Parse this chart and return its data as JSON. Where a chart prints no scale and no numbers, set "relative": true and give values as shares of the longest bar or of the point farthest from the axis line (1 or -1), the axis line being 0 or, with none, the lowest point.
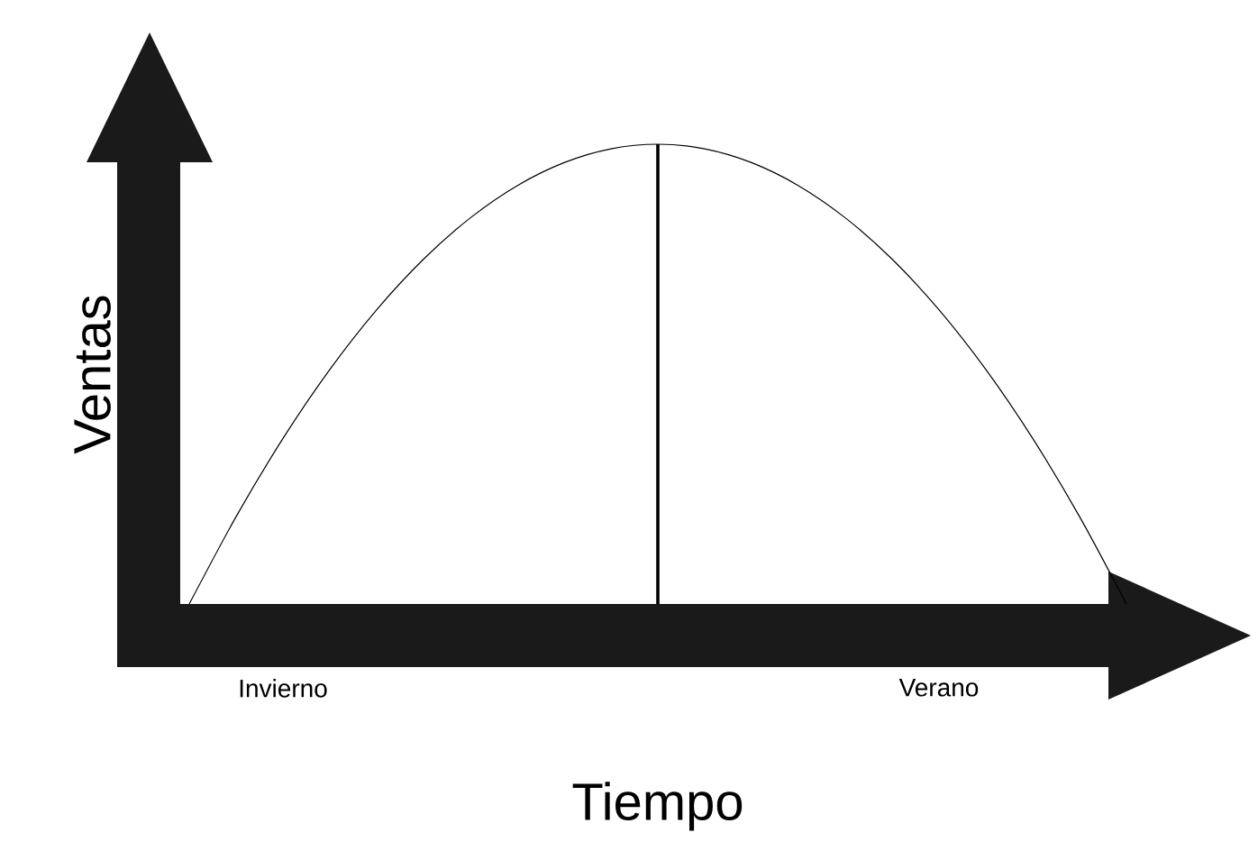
{
  "chart_data": {
    "type": "line",
    "relative": true,
    "xlabel": "Tiempo",
    "ylabel": "Ventas",
    "color": "#000000",
    "categories": [
      null,
      null,
      "Invierno",
      null,
      null,
      null,
      null,
      null,
      null,
      null,
      null,
      null,
      null,
      null,
      null,
      null,
      "Verano",
      null,
      null,
      null,
      null
    ],
    "values": [
      0,
      0.19,
      0.36,
      0.51,
      0.64,
      0.75,
      0.84,
      0.91,
      0.96,
      0.99,
      1,
      0.99,
      0.96,
      0.91,
      0.84,
      0.75,
      0.64,
      0.51,
      0.36,
      0.19,
      0
    ]
  }
}
